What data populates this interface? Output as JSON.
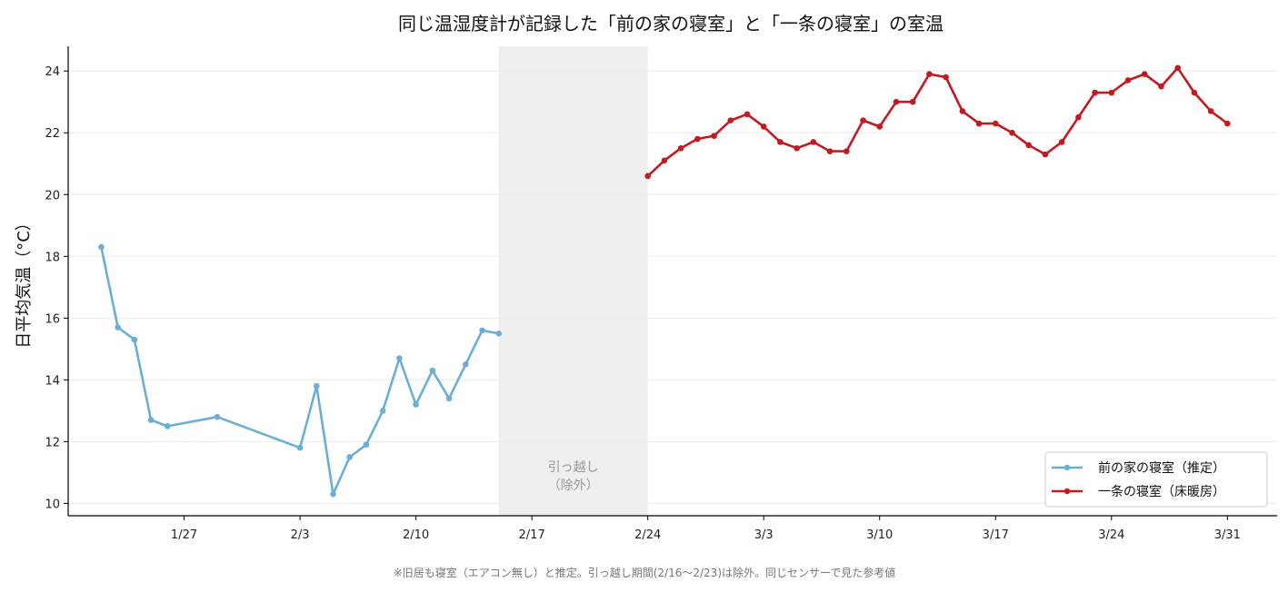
{
  "chart_data": {
    "type": "line",
    "title": "同じ温湿度計が記録した「前の家の寝室」と「一条の寝室」の室温",
    "ylabel": "日平均気温（°C）",
    "xlabel": "",
    "ylim": [
      9.6,
      24.8
    ],
    "xlim": [
      "2025-01-20",
      "2025-04-03"
    ],
    "y_ticks": [
      10,
      12,
      14,
      16,
      18,
      20,
      22,
      24
    ],
    "x_ticks": [
      {
        "date": "2025-01-27",
        "label": "1/27"
      },
      {
        "date": "2025-02-03",
        "label": "2/3"
      },
      {
        "date": "2025-02-10",
        "label": "2/10"
      },
      {
        "date": "2025-02-17",
        "label": "2/17"
      },
      {
        "date": "2025-02-24",
        "label": "2/24"
      },
      {
        "date": "2025-03-03",
        "label": "3/3"
      },
      {
        "date": "2025-03-10",
        "label": "3/10"
      },
      {
        "date": "2025-03-17",
        "label": "3/17"
      },
      {
        "date": "2025-03-24",
        "label": "3/24"
      },
      {
        "date": "2025-03-31",
        "label": "3/31"
      }
    ],
    "grid": "horizontal",
    "legend_position": "bottom-right",
    "excluded_band": {
      "start": "2025-02-15",
      "end": "2025-02-24",
      "label_line1": "引っ越し",
      "label_line2": "（除外）",
      "color": "#efefef"
    },
    "series": [
      {
        "name": "前の家の寝室（推定）",
        "color": "#6baed6",
        "points": [
          {
            "x": "2025-01-22",
            "y": 18.3
          },
          {
            "x": "2025-01-23",
            "y": 15.7
          },
          {
            "x": "2025-01-24",
            "y": 15.3
          },
          {
            "x": "2025-01-25",
            "y": 12.7
          },
          {
            "x": "2025-01-26",
            "y": 12.5
          },
          {
            "x": "2025-01-29",
            "y": 12.8
          },
          {
            "x": "2025-02-03",
            "y": 11.8
          },
          {
            "x": "2025-02-04",
            "y": 13.8
          },
          {
            "x": "2025-02-05",
            "y": 10.3
          },
          {
            "x": "2025-02-06",
            "y": 11.5
          },
          {
            "x": "2025-02-07",
            "y": 11.9
          },
          {
            "x": "2025-02-08",
            "y": 13.0
          },
          {
            "x": "2025-02-09",
            "y": 14.7
          },
          {
            "x": "2025-02-10",
            "y": 13.2
          },
          {
            "x": "2025-02-11",
            "y": 14.3
          },
          {
            "x": "2025-02-12",
            "y": 13.4
          },
          {
            "x": "2025-02-13",
            "y": 14.5
          },
          {
            "x": "2025-02-14",
            "y": 15.6
          },
          {
            "x": "2025-02-15",
            "y": 15.5
          }
        ]
      },
      {
        "name": "一条の寝室（床暖房）",
        "color": "#c41a1f",
        "points": [
          {
            "x": "2025-02-24",
            "y": 20.6
          },
          {
            "x": "2025-02-25",
            "y": 21.1
          },
          {
            "x": "2025-02-26",
            "y": 21.5
          },
          {
            "x": "2025-02-27",
            "y": 21.8
          },
          {
            "x": "2025-02-28",
            "y": 21.9
          },
          {
            "x": "2025-03-01",
            "y": 22.4
          },
          {
            "x": "2025-03-02",
            "y": 22.6
          },
          {
            "x": "2025-03-03",
            "y": 22.2
          },
          {
            "x": "2025-03-04",
            "y": 21.7
          },
          {
            "x": "2025-03-05",
            "y": 21.5
          },
          {
            "x": "2025-03-06",
            "y": 21.7
          },
          {
            "x": "2025-03-07",
            "y": 21.4
          },
          {
            "x": "2025-03-08",
            "y": 21.4
          },
          {
            "x": "2025-03-09",
            "y": 22.4
          },
          {
            "x": "2025-03-10",
            "y": 22.2
          },
          {
            "x": "2025-03-11",
            "y": 23.0
          },
          {
            "x": "2025-03-12",
            "y": 23.0
          },
          {
            "x": "2025-03-13",
            "y": 23.9
          },
          {
            "x": "2025-03-14",
            "y": 23.8
          },
          {
            "x": "2025-03-15",
            "y": 22.7
          },
          {
            "x": "2025-03-16",
            "y": 22.3
          },
          {
            "x": "2025-03-17",
            "y": 22.3
          },
          {
            "x": "2025-03-18",
            "y": 22.0
          },
          {
            "x": "2025-03-19",
            "y": 21.6
          },
          {
            "x": "2025-03-20",
            "y": 21.3
          },
          {
            "x": "2025-03-21",
            "y": 21.7
          },
          {
            "x": "2025-03-22",
            "y": 22.5
          },
          {
            "x": "2025-03-23",
            "y": 23.3
          },
          {
            "x": "2025-03-24",
            "y": 23.3
          },
          {
            "x": "2025-03-25",
            "y": 23.7
          },
          {
            "x": "2025-03-26",
            "y": 23.9
          },
          {
            "x": "2025-03-27",
            "y": 23.5
          },
          {
            "x": "2025-03-28",
            "y": 24.1
          },
          {
            "x": "2025-03-29",
            "y": 23.3
          },
          {
            "x": "2025-03-30",
            "y": 22.7
          },
          {
            "x": "2025-03-31",
            "y": 22.3
          }
        ]
      }
    ],
    "footnote": "※旧居も寝室（エアコン無し）と推定。引っ越し期間(2/16〜2/23)は除外。同じセンサーで見た参考値"
  }
}
